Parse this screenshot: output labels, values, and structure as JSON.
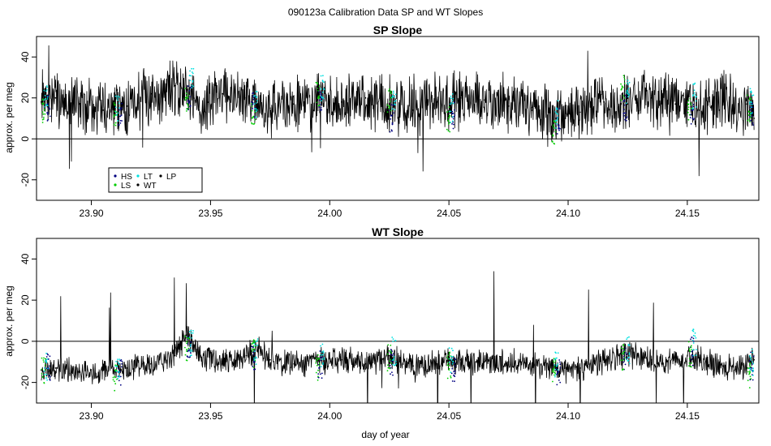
{
  "figure": {
    "title": "090123a   Calibration Data SP and WT Slopes",
    "xlabel": "day of year"
  },
  "legend": {
    "placement": "bottom-left of top panel",
    "entries": [
      {
        "label": "HS",
        "color": "#000080"
      },
      {
        "label": "LT",
        "color": "#00e0e0"
      },
      {
        "label": "LP",
        "color": "#000000"
      },
      {
        "label": "LS",
        "color": "#00cc00"
      },
      {
        "label": "WT",
        "color": "#000000"
      }
    ]
  },
  "chart_data": [
    {
      "type": "line",
      "title": "SP Slope",
      "xlabel": "",
      "ylabel": "approx. per meg",
      "xlim": [
        23.877,
        24.18
      ],
      "ylim": [
        -30,
        50
      ],
      "xticks": [
        23.9,
        23.95,
        24.0,
        24.05,
        24.1,
        24.15
      ],
      "xticklabels": [
        "23.90",
        "23.95",
        "24.00",
        "24.05",
        "24.10",
        "24.15"
      ],
      "yticks": [
        -20,
        0,
        20,
        40
      ],
      "yticklabels": [
        "-20",
        "0",
        "20",
        "40"
      ],
      "hline": 0,
      "series": [
        {
          "name": "WT",
          "color": "#000000",
          "x": [
            23.879,
            23.885,
            23.895,
            23.905,
            23.915,
            23.925,
            23.935,
            23.94,
            23.945,
            23.955,
            23.965,
            23.975,
            23.985,
            23.995,
            24.005,
            24.015,
            24.025,
            24.035,
            24.045,
            24.055,
            24.065,
            24.075,
            24.085,
            24.095,
            24.105,
            24.115,
            24.125,
            24.135,
            24.145,
            24.155,
            24.165,
            24.175,
            24.178
          ],
          "y": [
            18,
            20,
            17,
            14,
            16,
            22,
            26,
            24,
            14,
            22,
            20,
            15,
            17,
            19,
            18,
            20,
            17,
            14,
            18,
            20,
            19,
            16,
            14,
            10,
            13,
            18,
            17,
            20,
            17,
            14,
            18,
            17,
            10
          ]
        },
        {
          "name": "HS",
          "color": "#000080",
          "x": [
            23.882,
            23.912,
            23.941,
            23.968,
            23.996,
            24.026,
            24.052,
            24.096,
            24.124,
            24.152,
            24.177
          ],
          "y": [
            14,
            12,
            20,
            16,
            19,
            10,
            12,
            8,
            15,
            14,
            12
          ]
        },
        {
          "name": "LS",
          "color": "#00cc00",
          "x": [
            23.88,
            23.91,
            23.94,
            23.968,
            23.995,
            24.025,
            24.05,
            24.094,
            24.123,
            24.151,
            24.176
          ],
          "y": [
            15,
            11,
            18,
            12,
            22,
            18,
            10,
            4,
            25,
            16,
            15
          ]
        },
        {
          "name": "LT",
          "color": "#00e0e0",
          "x": [
            23.881,
            23.911,
            23.942,
            23.969,
            23.997,
            24.027,
            24.051,
            24.095,
            24.125,
            24.153,
            24.177
          ],
          "y": [
            20,
            14,
            30,
            17,
            24,
            18,
            15,
            12,
            22,
            21,
            18
          ]
        }
      ]
    },
    {
      "type": "line",
      "title": "WT Slope",
      "xlabel": "day of year",
      "ylabel": "approx. per meg",
      "xlim": [
        23.877,
        24.18
      ],
      "ylim": [
        -30,
        50
      ],
      "xticks": [
        23.9,
        23.95,
        24.0,
        24.05,
        24.1,
        24.15
      ],
      "xticklabels": [
        "23.90",
        "23.95",
        "24.00",
        "24.05",
        "24.10",
        "24.15"
      ],
      "yticks": [
        -20,
        0,
        20,
        40
      ],
      "yticklabels": [
        "-20",
        "0",
        "20",
        "40"
      ],
      "hline": 0,
      "series": [
        {
          "name": "WT",
          "color": "#000000",
          "x": [
            23.879,
            23.885,
            23.895,
            23.905,
            23.915,
            23.925,
            23.935,
            23.94,
            23.945,
            23.955,
            23.965,
            23.97,
            23.975,
            23.985,
            23.995,
            24.005,
            24.015,
            24.025,
            24.035,
            24.045,
            24.055,
            24.065,
            24.075,
            24.085,
            24.095,
            24.105,
            24.115,
            24.125,
            24.135,
            24.145,
            24.155,
            24.165,
            24.175,
            24.178
          ],
          "y": [
            -14,
            -13,
            -15,
            -14,
            -13,
            -11,
            -7,
            3,
            -6,
            -11,
            -7,
            -3,
            -9,
            -11,
            -10,
            -9,
            -11,
            -7,
            -12,
            -11,
            -9,
            -10,
            -10,
            -11,
            -14,
            -13,
            -9,
            -6,
            -9,
            -10,
            -8,
            -12,
            -13,
            -9
          ]
        },
        {
          "name": "HS",
          "color": "#000080",
          "x": [
            23.882,
            23.912,
            23.941,
            23.968,
            23.996,
            24.026,
            24.052,
            24.096,
            24.124,
            24.152,
            24.177
          ],
          "y": [
            -13,
            -15,
            -3,
            -8,
            -11,
            -10,
            -13,
            -15,
            -7,
            -5,
            -12
          ]
        },
        {
          "name": "LS",
          "color": "#00cc00",
          "x": [
            23.88,
            23.91,
            23.94,
            23.968,
            23.995,
            24.025,
            24.05,
            24.094,
            24.123,
            24.151,
            24.176
          ],
          "y": [
            -15,
            -17,
            -3,
            -6,
            -13,
            -8,
            -12,
            -15,
            -7,
            -6,
            -16
          ]
        },
        {
          "name": "LT",
          "color": "#00e0e0",
          "x": [
            23.881,
            23.911,
            23.942,
            23.969,
            23.997,
            24.027,
            24.051,
            24.095,
            24.125,
            24.153,
            24.177
          ],
          "y": [
            -12,
            -13,
            0,
            -5,
            -8,
            -5,
            -9,
            -12,
            -4,
            -1,
            -10
          ]
        }
      ]
    }
  ]
}
